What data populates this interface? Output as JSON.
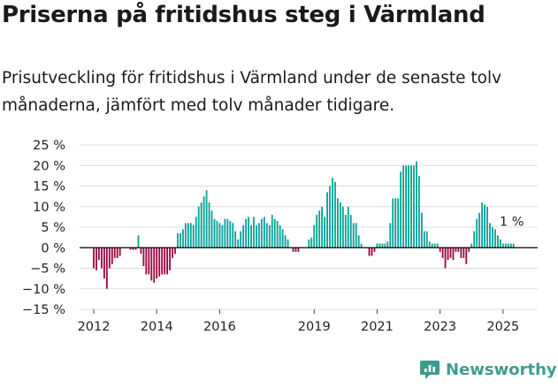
{
  "title": "Priserna på fritidshus steg i Värmland",
  "subtitle": "Prisutveckling för fritidshus i Värmland under de senaste tolv månaderna, jämfört med tolv månader tidigare.",
  "brand": {
    "name": "Newsworthy",
    "icon": "newsworthy-logo-icon"
  },
  "colors": {
    "positive": "#0aa398",
    "negative": "#9e0a44",
    "grid": "#dddddd",
    "axis": "#000000"
  },
  "chart_data": {
    "type": "bar",
    "title": "",
    "xlabel": "",
    "ylabel": "",
    "ylim": [
      -15,
      25
    ],
    "xlim": [
      2011.55,
      2026.1
    ],
    "y_ticks": [
      -15,
      -10,
      -5,
      0,
      5,
      10,
      15,
      20,
      25
    ],
    "y_tick_labels": [
      "−15 %",
      "−10 %",
      "−5 %",
      "0 %",
      "5 %",
      "10 %",
      "15 %",
      "20 %",
      "25 %"
    ],
    "x_ticks": [
      2012,
      2014,
      2016,
      2019,
      2021,
      2023,
      2025
    ],
    "x_tick_labels": [
      "2012",
      "2014",
      "2016",
      "2019",
      "2021",
      "2023",
      "2025"
    ],
    "grid": true,
    "annotation": {
      "text": "1 %",
      "value": 1
    },
    "series": [
      {
        "x": [
          "2012-01",
          "2012-02",
          "2012-03",
          "2012-04",
          "2012-05",
          "2012-06",
          "2012-07",
          "2012-08",
          "2012-09",
          "2012-10",
          "2012-11",
          "2012-12",
          "2013-01",
          "2013-02",
          "2013-03",
          "2013-04",
          "2013-05",
          "2013-06",
          "2013-07",
          "2013-08",
          "2013-09",
          "2013-10",
          "2013-11",
          "2013-12",
          "2014-01",
          "2014-02",
          "2014-03",
          "2014-04",
          "2014-05",
          "2014-06",
          "2014-07",
          "2014-08",
          "2014-09",
          "2014-10",
          "2014-11",
          "2014-12",
          "2015-01",
          "2015-02",
          "2015-03",
          "2015-04",
          "2015-05",
          "2015-06",
          "2015-07",
          "2015-08",
          "2015-09",
          "2015-10",
          "2015-11",
          "2015-12",
          "2016-01",
          "2016-02",
          "2016-03",
          "2016-04",
          "2016-05",
          "2016-06",
          "2016-07",
          "2016-08",
          "2016-09",
          "2016-10",
          "2016-11",
          "2016-12",
          "2017-01",
          "2017-02",
          "2017-03",
          "2017-04",
          "2017-05",
          "2017-06",
          "2017-07",
          "2017-08",
          "2017-09",
          "2017-10",
          "2017-11",
          "2017-12",
          "2018-01",
          "2018-02",
          "2018-03",
          "2018-04",
          "2018-05",
          "2018-06",
          "2018-07",
          "2018-08",
          "2018-09",
          "2018-10",
          "2018-11",
          "2018-12",
          "2019-01",
          "2019-02",
          "2019-03",
          "2019-04",
          "2019-05",
          "2019-06",
          "2019-07",
          "2019-08",
          "2019-09",
          "2019-10",
          "2019-11",
          "2019-12",
          "2020-01",
          "2020-02",
          "2020-03",
          "2020-04",
          "2020-05",
          "2020-06",
          "2020-07",
          "2020-08",
          "2020-09",
          "2020-10",
          "2020-11",
          "2020-12",
          "2021-01",
          "2021-02",
          "2021-03",
          "2021-04",
          "2021-05",
          "2021-06",
          "2021-07",
          "2021-08",
          "2021-09",
          "2021-10",
          "2021-11",
          "2021-12",
          "2022-01",
          "2022-02",
          "2022-03",
          "2022-04",
          "2022-05",
          "2022-06",
          "2022-07",
          "2022-08",
          "2022-09",
          "2022-10",
          "2022-11",
          "2022-12",
          "2023-01",
          "2023-02",
          "2023-03",
          "2023-04",
          "2023-05",
          "2023-06",
          "2023-07",
          "2023-08",
          "2023-09",
          "2023-10",
          "2023-11",
          "2023-12",
          "2024-01",
          "2024-02",
          "2024-03",
          "2024-04",
          "2024-05",
          "2024-06",
          "2024-07",
          "2024-08",
          "2024-09",
          "2024-10",
          "2024-11",
          "2024-12",
          "2025-01",
          "2025-02",
          "2025-03",
          "2025-04",
          "2025-05"
        ],
        "values": [
          -5,
          -5.5,
          -3,
          -5,
          -7.5,
          -10,
          -5,
          -4,
          -2.5,
          -2.5,
          -2,
          0,
          0,
          0,
          -0.5,
          -0.5,
          -0.5,
          3,
          -1.5,
          -4.5,
          -6.5,
          -6.5,
          -8,
          -8.5,
          -7.5,
          -7,
          -6.5,
          -6.5,
          -6.5,
          -5.5,
          -2.5,
          -1.5,
          3.5,
          3.5,
          4.5,
          6,
          6,
          6,
          5.5,
          7.5,
          10,
          11,
          12.5,
          14,
          11,
          9,
          7,
          6.5,
          6,
          5.5,
          7,
          7,
          6.5,
          6,
          4,
          2,
          4,
          5.5,
          7,
          7.5,
          5.5,
          7.5,
          5.5,
          6,
          7,
          7.5,
          6,
          5.5,
          8,
          7,
          6.5,
          5.5,
          4.5,
          3,
          2,
          0,
          -1,
          -1,
          -1,
          0,
          0,
          0,
          2,
          2.5,
          5.5,
          8,
          9,
          10,
          7.5,
          13.5,
          15,
          17,
          16,
          12,
          11,
          10,
          8,
          10,
          8,
          6,
          6,
          3,
          1,
          0,
          0,
          -2,
          -2,
          -1,
          1,
          1,
          1,
          1,
          1.5,
          6,
          12,
          12,
          12,
          18.5,
          20,
          20,
          20,
          20,
          20,
          21,
          17.5,
          8.5,
          4,
          4,
          1.5,
          1,
          1,
          1,
          -1,
          -2.5,
          -5,
          -3,
          -2.5,
          -3,
          -1,
          -1,
          -2.5,
          -2.5,
          -4,
          -1,
          1,
          4,
          7,
          8.5,
          11,
          10.5,
          10,
          6,
          5,
          4.5,
          3,
          2,
          1,
          1,
          1,
          1,
          1
        ]
      }
    ]
  }
}
